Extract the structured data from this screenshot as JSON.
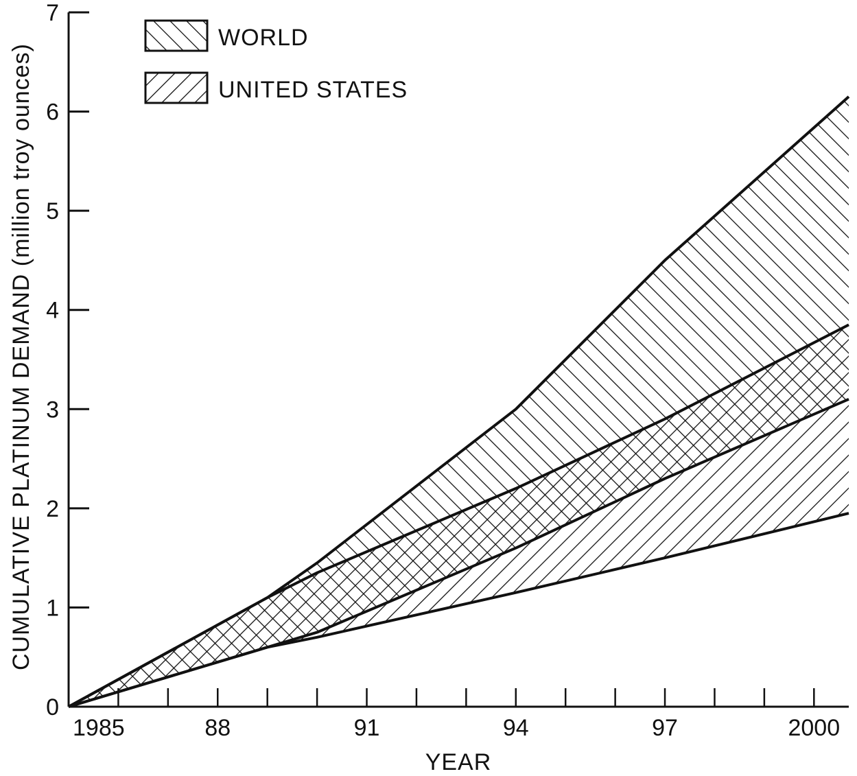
{
  "chart_data": {
    "type": "area",
    "title": "",
    "xlabel": "YEAR",
    "ylabel": "CUMULATIVE PLATINUM DEMAND (million troy ounces)",
    "xlim": [
      1985,
      2000.7
    ],
    "ylim": [
      0,
      7
    ],
    "x_ticks": [
      1985,
      1988,
      1991,
      1994,
      1997,
      2000
    ],
    "x_tick_labels": [
      "1985",
      "88",
      "91",
      "94",
      "97",
      "2000"
    ],
    "x_minor_ticks": [
      1986,
      1987,
      1988,
      1989,
      1990,
      1991,
      1992,
      1993,
      1994,
      1995,
      1996,
      1997,
      1998,
      1999,
      2000
    ],
    "y_ticks": [
      0,
      1,
      2,
      3,
      4,
      5,
      6,
      7
    ],
    "y_tick_labels": [
      "0",
      "1",
      "2",
      "3",
      "4",
      "5",
      "6",
      "7"
    ],
    "grid": false,
    "legend_position": "top-left",
    "series": [
      {
        "name": "WORLD",
        "pattern": "back-diagonal-hatch",
        "upper": {
          "x": [
            1985,
            1989,
            1990,
            1994,
            1997,
            2000.7
          ],
          "y": [
            0,
            1.1,
            1.45,
            3.0,
            4.5,
            6.15
          ]
        },
        "lower": {
          "x": [
            1985,
            1989,
            1990,
            1994,
            1997,
            2000.7
          ],
          "y": [
            0,
            0.6,
            0.75,
            1.6,
            2.3,
            3.1
          ]
        }
      },
      {
        "name": "UNITED STATES",
        "pattern": "forward-diagonal-hatch",
        "upper": {
          "x": [
            1985,
            1989,
            1990,
            1994,
            1997,
            2000.7
          ],
          "y": [
            0,
            1.1,
            1.35,
            2.2,
            2.9,
            3.85
          ]
        },
        "lower": {
          "x": [
            1985,
            1989,
            1990,
            1994,
            1997,
            2000.7
          ],
          "y": [
            0,
            0.6,
            0.7,
            1.15,
            1.5,
            1.95
          ]
        }
      }
    ]
  }
}
